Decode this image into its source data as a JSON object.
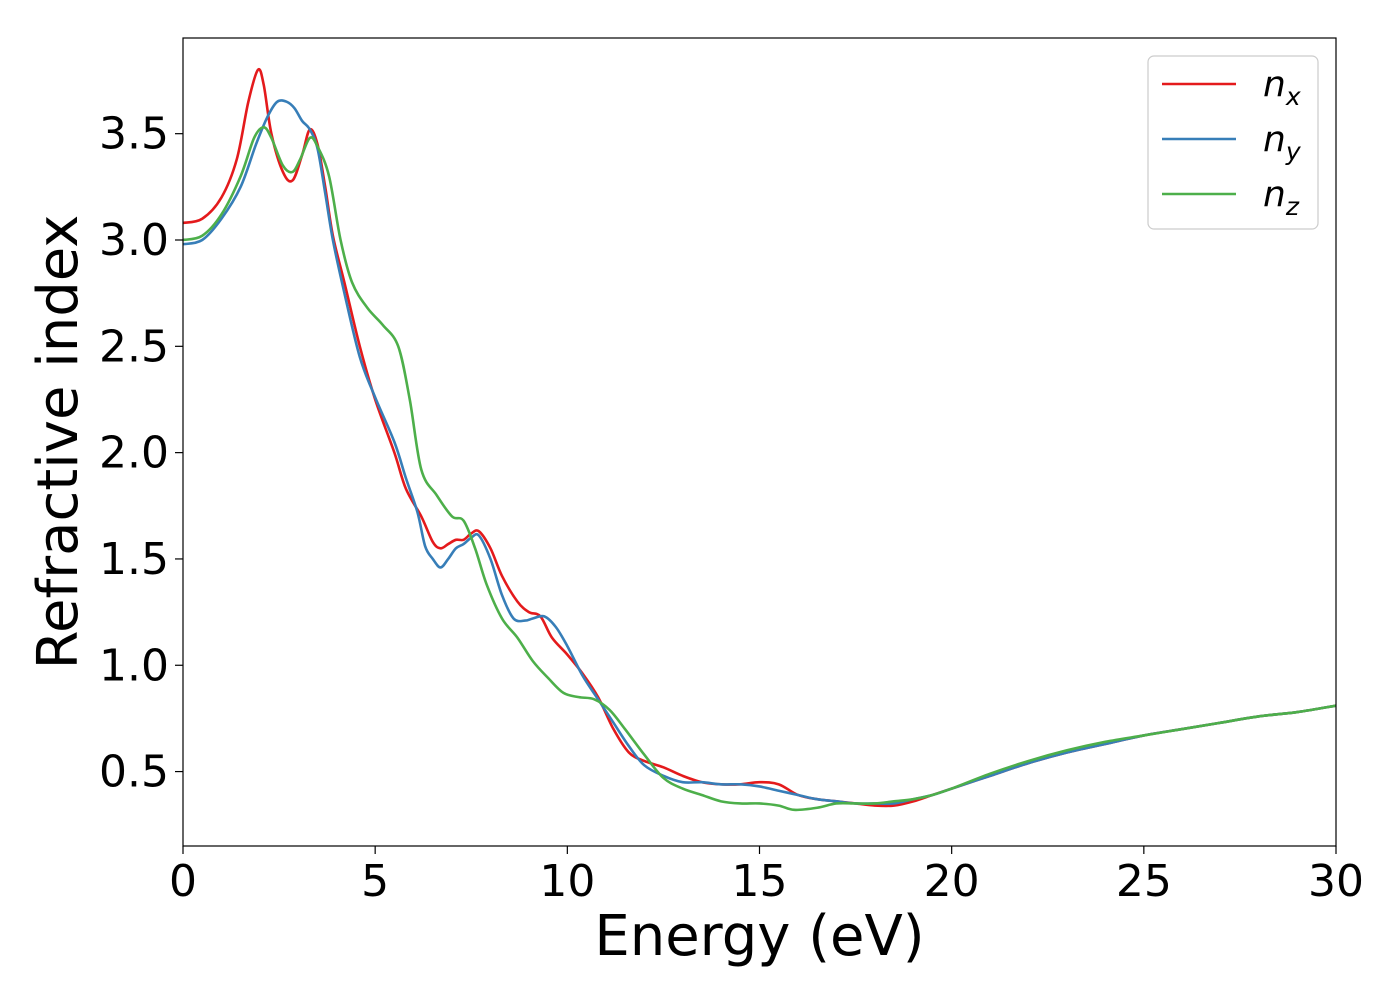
{
  "chart_data": {
    "type": "line",
    "title": "",
    "xlabel": "Energy (eV)",
    "ylabel": "Refractive index",
    "xlim": [
      0,
      30
    ],
    "ylim": [
      0.15,
      3.95
    ],
    "xticks": [
      0,
      5,
      10,
      15,
      20,
      25,
      30
    ],
    "xtick_labels": [
      "0",
      "5",
      "10",
      "15",
      "20",
      "25",
      "30"
    ],
    "yticks": [
      0.5,
      1.0,
      1.5,
      2.0,
      2.5,
      3.0,
      3.5
    ],
    "ytick_labels": [
      "0.5",
      "1.0",
      "1.5",
      "2.0",
      "2.5",
      "3.0",
      "3.5"
    ],
    "grid": false,
    "legend_position": "top-right",
    "series": [
      {
        "name": "n_x",
        "label_base": "n",
        "label_sub": "x",
        "color": "#e41a1c",
        "points": [
          [
            0,
            3.08
          ],
          [
            0.5,
            3.1
          ],
          [
            1.0,
            3.2
          ],
          [
            1.4,
            3.38
          ],
          [
            1.7,
            3.65
          ],
          [
            1.95,
            3.8
          ],
          [
            2.1,
            3.73
          ],
          [
            2.3,
            3.5
          ],
          [
            2.6,
            3.32
          ],
          [
            2.85,
            3.28
          ],
          [
            3.1,
            3.4
          ],
          [
            3.3,
            3.52
          ],
          [
            3.5,
            3.45
          ],
          [
            3.7,
            3.25
          ],
          [
            3.9,
            3.02
          ],
          [
            4.2,
            2.8
          ],
          [
            4.6,
            2.5
          ],
          [
            5.0,
            2.25
          ],
          [
            5.5,
            2.0
          ],
          [
            5.8,
            1.83
          ],
          [
            6.2,
            1.7
          ],
          [
            6.5,
            1.58
          ],
          [
            6.7,
            1.55
          ],
          [
            6.9,
            1.57
          ],
          [
            7.1,
            1.59
          ],
          [
            7.3,
            1.59
          ],
          [
            7.5,
            1.62
          ],
          [
            7.7,
            1.63
          ],
          [
            8.0,
            1.55
          ],
          [
            8.3,
            1.42
          ],
          [
            8.7,
            1.3
          ],
          [
            9.0,
            1.25
          ],
          [
            9.3,
            1.23
          ],
          [
            9.6,
            1.13
          ],
          [
            10.0,
            1.05
          ],
          [
            10.4,
            0.96
          ],
          [
            10.8,
            0.85
          ],
          [
            11.2,
            0.7
          ],
          [
            11.6,
            0.59
          ],
          [
            12.0,
            0.55
          ],
          [
            12.5,
            0.52
          ],
          [
            13.0,
            0.48
          ],
          [
            13.5,
            0.45
          ],
          [
            14.0,
            0.44
          ],
          [
            14.5,
            0.44
          ],
          [
            15.0,
            0.45
          ],
          [
            15.5,
            0.44
          ],
          [
            16.0,
            0.39
          ],
          [
            16.5,
            0.37
          ],
          [
            17.0,
            0.36
          ],
          [
            17.5,
            0.35
          ],
          [
            18.0,
            0.34
          ],
          [
            18.5,
            0.34
          ],
          [
            19.0,
            0.36
          ],
          [
            19.5,
            0.39
          ],
          [
            20.0,
            0.42
          ],
          [
            21,
            0.48
          ],
          [
            22,
            0.54
          ],
          [
            23,
            0.59
          ],
          [
            24,
            0.63
          ],
          [
            25,
            0.67
          ],
          [
            26,
            0.7
          ],
          [
            27,
            0.73
          ],
          [
            28,
            0.76
          ],
          [
            29,
            0.78
          ],
          [
            30,
            0.81
          ]
        ]
      },
      {
        "name": "n_y",
        "label_base": "n",
        "label_sub": "y",
        "color": "#377eb8",
        "points": [
          [
            0,
            2.98
          ],
          [
            0.5,
            3.0
          ],
          [
            1.0,
            3.1
          ],
          [
            1.5,
            3.25
          ],
          [
            1.9,
            3.45
          ],
          [
            2.2,
            3.58
          ],
          [
            2.45,
            3.65
          ],
          [
            2.7,
            3.65
          ],
          [
            2.9,
            3.62
          ],
          [
            3.1,
            3.56
          ],
          [
            3.3,
            3.52
          ],
          [
            3.5,
            3.43
          ],
          [
            3.7,
            3.22
          ],
          [
            3.9,
            3.0
          ],
          [
            4.2,
            2.75
          ],
          [
            4.6,
            2.45
          ],
          [
            5.0,
            2.26
          ],
          [
            5.5,
            2.05
          ],
          [
            5.8,
            1.88
          ],
          [
            6.1,
            1.72
          ],
          [
            6.3,
            1.56
          ],
          [
            6.5,
            1.5
          ],
          [
            6.7,
            1.46
          ],
          [
            6.9,
            1.5
          ],
          [
            7.1,
            1.55
          ],
          [
            7.3,
            1.57
          ],
          [
            7.5,
            1.6
          ],
          [
            7.7,
            1.61
          ],
          [
            8.0,
            1.5
          ],
          [
            8.3,
            1.33
          ],
          [
            8.6,
            1.22
          ],
          [
            8.9,
            1.21
          ],
          [
            9.1,
            1.22
          ],
          [
            9.4,
            1.23
          ],
          [
            9.7,
            1.18
          ],
          [
            10.0,
            1.09
          ],
          [
            10.4,
            0.95
          ],
          [
            10.8,
            0.84
          ],
          [
            11.2,
            0.73
          ],
          [
            11.6,
            0.62
          ],
          [
            12.0,
            0.53
          ],
          [
            12.5,
            0.48
          ],
          [
            13.0,
            0.45
          ],
          [
            13.5,
            0.45
          ],
          [
            14.0,
            0.44
          ],
          [
            14.5,
            0.44
          ],
          [
            15.0,
            0.43
          ],
          [
            15.5,
            0.41
          ],
          [
            16.0,
            0.39
          ],
          [
            16.5,
            0.37
          ],
          [
            17.0,
            0.36
          ],
          [
            17.5,
            0.35
          ],
          [
            18.0,
            0.35
          ],
          [
            18.5,
            0.35
          ],
          [
            19.0,
            0.37
          ],
          [
            19.5,
            0.39
          ],
          [
            20.0,
            0.42
          ],
          [
            21,
            0.48
          ],
          [
            22,
            0.54
          ],
          [
            23,
            0.59
          ],
          [
            24,
            0.63
          ],
          [
            25,
            0.67
          ],
          [
            26,
            0.7
          ],
          [
            27,
            0.73
          ],
          [
            28,
            0.76
          ],
          [
            29,
            0.78
          ],
          [
            30,
            0.81
          ]
        ]
      },
      {
        "name": "n_z",
        "label_base": "n",
        "label_sub": "z",
        "color": "#4daf4a",
        "points": [
          [
            0,
            3.0
          ],
          [
            0.5,
            3.02
          ],
          [
            1.0,
            3.12
          ],
          [
            1.5,
            3.3
          ],
          [
            1.85,
            3.48
          ],
          [
            2.1,
            3.53
          ],
          [
            2.3,
            3.48
          ],
          [
            2.6,
            3.35
          ],
          [
            2.85,
            3.32
          ],
          [
            3.05,
            3.38
          ],
          [
            3.3,
            3.48
          ],
          [
            3.5,
            3.44
          ],
          [
            3.8,
            3.3
          ],
          [
            4.1,
            3.0
          ],
          [
            4.4,
            2.8
          ],
          [
            4.8,
            2.68
          ],
          [
            5.2,
            2.6
          ],
          [
            5.6,
            2.5
          ],
          [
            5.9,
            2.25
          ],
          [
            6.2,
            1.92
          ],
          [
            6.6,
            1.8
          ],
          [
            7.0,
            1.7
          ],
          [
            7.3,
            1.68
          ],
          [
            7.6,
            1.55
          ],
          [
            7.9,
            1.38
          ],
          [
            8.3,
            1.22
          ],
          [
            8.7,
            1.13
          ],
          [
            9.1,
            1.02
          ],
          [
            9.5,
            0.94
          ],
          [
            9.9,
            0.87
          ],
          [
            10.3,
            0.85
          ],
          [
            10.7,
            0.84
          ],
          [
            11.1,
            0.79
          ],
          [
            11.5,
            0.7
          ],
          [
            12.0,
            0.58
          ],
          [
            12.5,
            0.47
          ],
          [
            13.0,
            0.42
          ],
          [
            13.5,
            0.39
          ],
          [
            14.0,
            0.36
          ],
          [
            14.5,
            0.35
          ],
          [
            15.0,
            0.35
          ],
          [
            15.5,
            0.34
          ],
          [
            15.9,
            0.32
          ],
          [
            16.5,
            0.33
          ],
          [
            17.0,
            0.35
          ],
          [
            17.5,
            0.35
          ],
          [
            18.0,
            0.35
          ],
          [
            18.5,
            0.36
          ],
          [
            19.0,
            0.37
          ],
          [
            19.5,
            0.39
          ],
          [
            20.0,
            0.42
          ],
          [
            21,
            0.49
          ],
          [
            22,
            0.55
          ],
          [
            23,
            0.6
          ],
          [
            24,
            0.64
          ],
          [
            25,
            0.67
          ],
          [
            26,
            0.7
          ],
          [
            27,
            0.73
          ],
          [
            28,
            0.76
          ],
          [
            29,
            0.78
          ],
          [
            30,
            0.81
          ]
        ]
      }
    ]
  }
}
